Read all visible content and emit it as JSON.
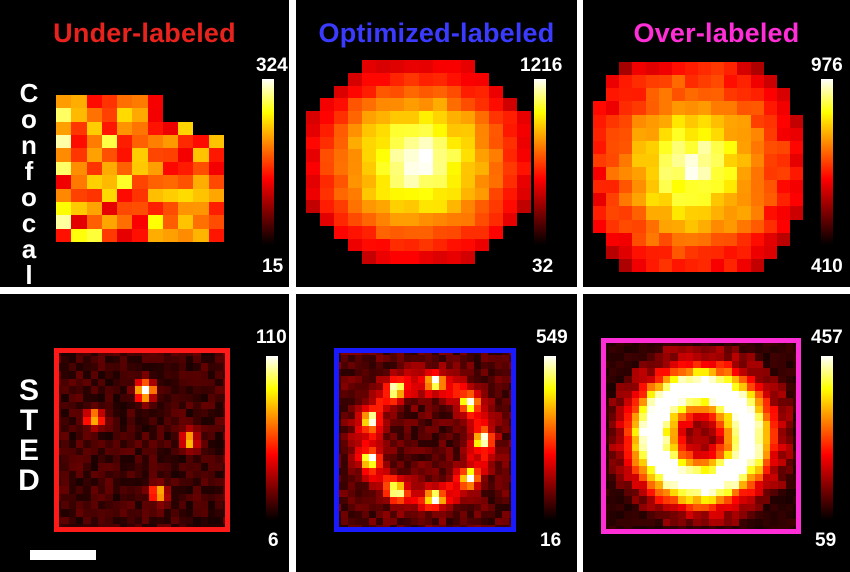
{
  "columns": [
    {
      "title": "Under-labeled",
      "color": "#e8221c"
    },
    {
      "title": "Optimized-labeled",
      "color": "#3b3bff"
    },
    {
      "title": "Over-labeled",
      "color": "#ff2ed6"
    }
  ],
  "rows": [
    {
      "label_letters": [
        "C",
        "o",
        "n",
        "f",
        "o",
        "c",
        "a",
        "l"
      ]
    },
    {
      "label_letters": [
        "S",
        "T",
        "E",
        "D"
      ]
    }
  ],
  "colorbars": [
    {
      "max": "324",
      "min": "15"
    },
    {
      "max": "1216",
      "min": "32"
    },
    {
      "max": "976",
      "min": "410"
    },
    {
      "max": "110",
      "min": "6"
    },
    {
      "max": "549",
      "min": "16"
    },
    {
      "max": "457",
      "min": "59"
    }
  ],
  "box_colors": [
    "#ff1a1a",
    "#1a1aff",
    "#ff2ed6"
  ],
  "colormap": "hot"
}
